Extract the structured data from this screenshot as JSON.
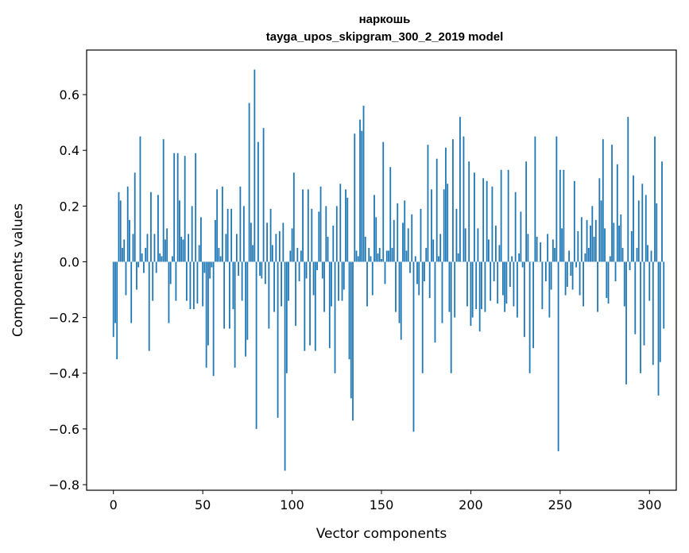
{
  "chart_data": {
    "type": "bar",
    "title": "наркошь",
    "subtitle": "tayga_upos_skipgram_300_2_2019 model",
    "xlabel": "Vector components",
    "ylabel": "Components values",
    "xlim": [
      -15,
      315
    ],
    "ylim": [
      -0.82,
      0.76
    ],
    "xticks": [
      0,
      50,
      100,
      150,
      200,
      250,
      300
    ],
    "xtick_labels": [
      "0",
      "50",
      "100",
      "150",
      "200",
      "250",
      "300"
    ],
    "yticks": [
      -0.8,
      -0.6,
      -0.4,
      -0.2,
      0.0,
      0.2,
      0.4,
      0.6
    ],
    "ytick_labels": [
      "−0.8",
      "−0.6",
      "−0.4",
      "−0.2",
      "0.0",
      "0.2",
      "0.4",
      "0.6"
    ],
    "grid": false,
    "bar_color": "#1f77b4",
    "values": [
      -0.27,
      -0.22,
      -0.35,
      0.25,
      0.22,
      0.05,
      0.08,
      -0.12,
      0.27,
      0.15,
      -0.22,
      0.1,
      0.32,
      -0.1,
      -0.02,
      0.45,
      0.03,
      -0.04,
      0.05,
      0.1,
      -0.32,
      0.25,
      -0.14,
      0.1,
      -0.04,
      0.24,
      0.03,
      0.02,
      0.44,
      0.08,
      0.12,
      -0.22,
      -0.08,
      0.02,
      0.39,
      -0.14,
      0.39,
      0.22,
      0.09,
      0.08,
      0.38,
      -0.14,
      0.1,
      -0.17,
      0.2,
      -0.17,
      0.39,
      -0.15,
      0.06,
      0.16,
      -0.16,
      -0.04,
      -0.38,
      -0.3,
      -0.06,
      -0.02,
      -0.41,
      0.15,
      0.26,
      0.05,
      0.02,
      0.27,
      -0.24,
      0.1,
      0.19,
      -0.24,
      0.19,
      -0.17,
      -0.38,
      0.1,
      -0.05,
      0.27,
      -0.14,
      0.2,
      -0.34,
      -0.28,
      0.57,
      0.14,
      0.06,
      0.69,
      -0.6,
      0.43,
      -0.05,
      -0.06,
      0.48,
      -0.08,
      0.14,
      -0.24,
      0.19,
      0.06,
      -0.18,
      0.1,
      -0.56,
      0.11,
      -0.16,
      0.14,
      -0.75,
      -0.4,
      -0.14,
      0.04,
      0.12,
      0.32,
      -0.23,
      0.05,
      -0.07,
      0.04,
      0.26,
      -0.32,
      -0.06,
      0.26,
      -0.3,
      0.19,
      -0.12,
      -0.32,
      -0.03,
      0.18,
      0.27,
      -0.06,
      -0.18,
      0.2,
      0.09,
      -0.31,
      -0.16,
      0.13,
      -0.4,
      0.2,
      -0.14,
      0.28,
      -0.14,
      -0.1,
      0.26,
      0.23,
      -0.35,
      -0.49,
      -0.57,
      0.46,
      0.04,
      0.02,
      0.51,
      0.47,
      0.56,
      0.09,
      -0.16,
      0.05,
      0.02,
      -0.12,
      0.24,
      0.16,
      0.03,
      0.05,
      0.01,
      0.43,
      -0.08,
      0.04,
      0.04,
      0.34,
      0.05,
      0.15,
      -0.18,
      0.21,
      -0.22,
      -0.28,
      0.14,
      0.22,
      0.04,
      0.12,
      -0.04,
      0.17,
      -0.61,
      0.02,
      -0.08,
      -0.12,
      0.19,
      -0.4,
      -0.07,
      0.05,
      0.42,
      -0.13,
      0.26,
      0.08,
      -0.29,
      0.37,
      0.02,
      0.1,
      -0.22,
      0.26,
      0.41,
      0.28,
      -0.18,
      -0.4,
      0.44,
      -0.2,
      0.19,
      0.03,
      0.52,
      0.0,
      0.45,
      0.12,
      -0.16,
      0.36,
      -0.23,
      -0.2,
      0.32,
      -0.17,
      0.12,
      -0.25,
      -0.17,
      0.3,
      -0.18,
      0.29,
      0.08,
      -0.14,
      0.27,
      -0.07,
      0.13,
      -0.15,
      0.06,
      0.33,
      -0.12,
      -0.18,
      -0.15,
      0.33,
      -0.09,
      0.02,
      -0.16,
      0.25,
      -0.2,
      0.03,
      0.18,
      -0.02,
      -0.27,
      0.36,
      0.1,
      -0.4,
      0.0,
      -0.31,
      0.45,
      0.09,
      0.0,
      0.07,
      -0.17,
      0.0,
      -0.07,
      0.1,
      -0.2,
      -0.1,
      0.08,
      0.05,
      0.45,
      -0.68,
      0.33,
      0.12,
      0.33,
      -0.12,
      -0.09,
      0.04,
      -0.05,
      -0.1,
      0.29,
      -0.02,
      0.11,
      -0.12,
      0.16,
      -0.16,
      0.03,
      0.15,
      0.05,
      0.13,
      0.2,
      0.09,
      0.15,
      -0.18,
      0.3,
      0.22,
      0.44,
      0.12,
      -0.13,
      -0.15,
      0.02,
      0.42,
      0.14,
      -0.07,
      0.35,
      0.13,
      0.17,
      0.05,
      -0.16,
      -0.44,
      0.52,
      -0.03,
      0.11,
      0.31,
      -0.26,
      0.05,
      0.22,
      -0.4,
      0.28,
      -0.3,
      0.24,
      0.06,
      -0.14,
      0.04,
      -0.37,
      0.45,
      0.21,
      -0.48,
      -0.36,
      0.36,
      -0.24
    ],
    "annotations": []
  }
}
